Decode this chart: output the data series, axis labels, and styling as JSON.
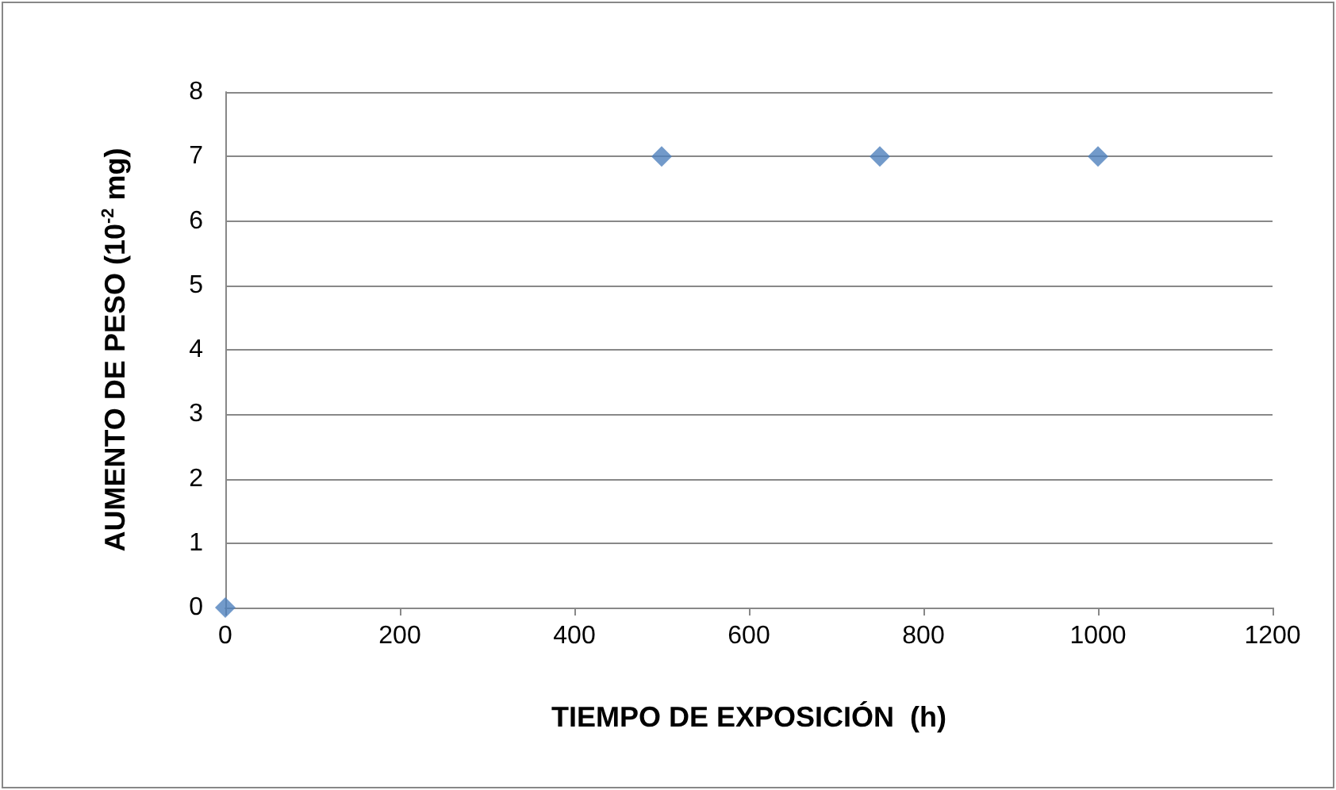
{
  "chart_data": {
    "type": "scatter",
    "xlabel": "TIEMPO DE EXPOSICIÓN  (h)",
    "ylabel": "AUMENTO DE PESO (10$^{-2}$ mg)",
    "x": [
      0,
      500,
      750,
      1000
    ],
    "series": [
      {
        "color": "#4f81bd",
        "values": [
          0,
          7,
          7,
          7
        ]
      }
    ],
    "xlim": [
      0,
      1200
    ],
    "xticks": [
      0,
      200,
      400,
      600,
      800,
      1000,
      1200
    ],
    "ylim": [
      0,
      8
    ],
    "yticks": [
      0,
      1,
      2,
      3,
      4,
      5,
      6,
      7,
      8
    ],
    "grid": "y",
    "marker": "diamond"
  }
}
